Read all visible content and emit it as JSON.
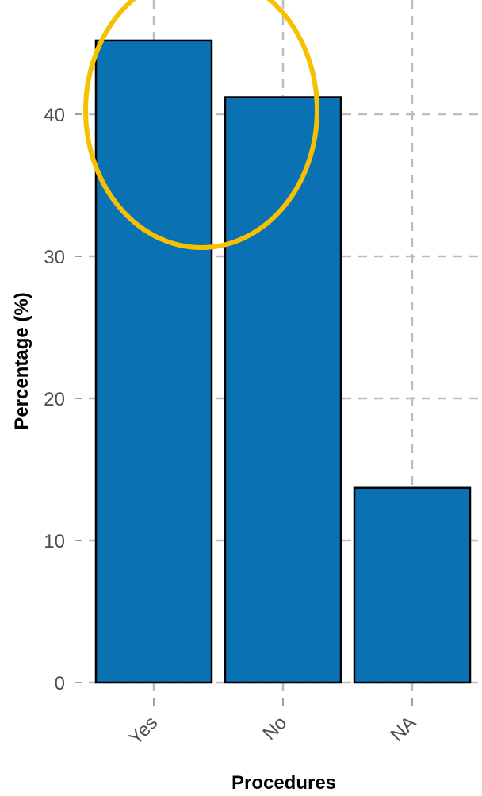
{
  "chart_data": {
    "type": "bar",
    "categories": [
      "Yes",
      "No",
      "NA"
    ],
    "values": [
      45.2,
      41.2,
      13.7
    ],
    "title": "",
    "xlabel": "Procedures",
    "ylabel": "Percentage (%)",
    "ylim": [
      0,
      47
    ],
    "yticks": [
      0,
      10,
      20,
      30,
      40
    ],
    "grid": true,
    "bar_color": "#0a71b2",
    "highlight_color": "#f7c000",
    "highlight": "ellipse around Yes and No bars"
  }
}
